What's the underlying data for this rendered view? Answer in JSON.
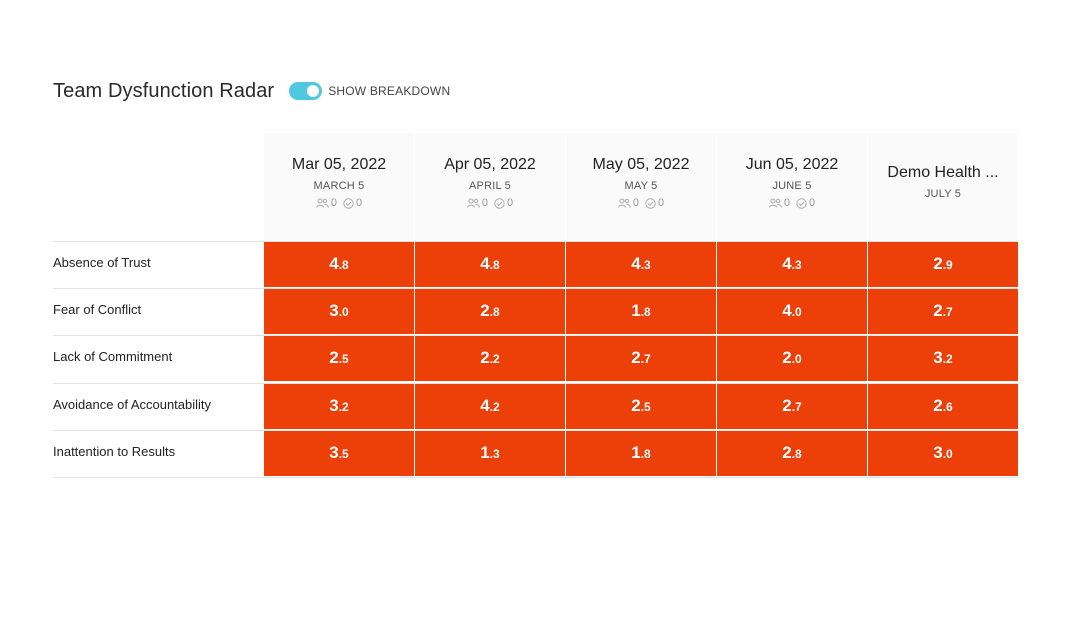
{
  "header": {
    "title": "Team Dysfunction Radar",
    "toggle_label": "SHOW BREAKDOWN",
    "toggle_on": true
  },
  "columns": [
    {
      "date": "Mar 05, 2022",
      "sub": "MARCH 5",
      "people": "0",
      "checks": "0"
    },
    {
      "date": "Apr 05, 2022",
      "sub": "APRIL 5",
      "people": "0",
      "checks": "0"
    },
    {
      "date": "May 05, 2022",
      "sub": "MAY 5",
      "people": "0",
      "checks": "0"
    },
    {
      "date": "Jun 05, 2022",
      "sub": "JUNE 5",
      "people": "0",
      "checks": "0"
    },
    {
      "date": "Demo Health ...",
      "sub": "JULY 5"
    }
  ],
  "rows": [
    {
      "label": "Absence of Trust",
      "scores": [
        "4.8",
        "4.8",
        "4.3",
        "4.3",
        "2.9"
      ]
    },
    {
      "label": "Fear of Conflict",
      "scores": [
        "3.0",
        "2.8",
        "1.8",
        "4.0",
        "2.7"
      ]
    },
    {
      "label": "Lack of Commitment",
      "scores": [
        "2.5",
        "2.2",
        "2.7",
        "2.0",
        "3.2"
      ]
    },
    {
      "label": "Avoidance of Accountability",
      "scores": [
        "3.2",
        "4.2",
        "2.5",
        "2.7",
        "2.6"
      ]
    },
    {
      "label": "Inattention to Results",
      "scores": [
        "3.5",
        "1.3",
        "1.8",
        "2.8",
        "3.0"
      ]
    }
  ],
  "colors": {
    "red": "#ec4008",
    "dark_orange": "#e98a06",
    "yellow": "#ebb201",
    "yellow_green": "#c5d82c",
    "green": "#7cb73b"
  }
}
